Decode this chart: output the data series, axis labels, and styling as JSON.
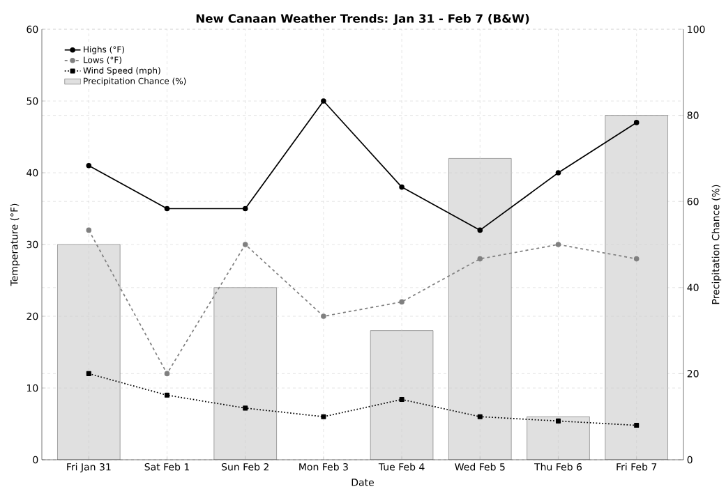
{
  "chart_data": {
    "type": "line",
    "title": "New Canaan Weather Trends: Jan 31 - Feb 7 (B&W)",
    "xlabel": "Date",
    "ylabel": "Temperature (°F)",
    "y2label": "Precipitation Chance (%)",
    "categories": [
      "Fri Jan 31",
      "Sat Feb 1",
      "Sun Feb 2",
      "Mon Feb 3",
      "Tue Feb 4",
      "Wed Feb 5",
      "Thu Feb 6",
      "Fri Feb 7"
    ],
    "series": [
      {
        "name": "Precipitation Chance (%)",
        "type": "bar",
        "axis": "y2",
        "color": "#e0e0e0",
        "values": [
          50,
          0,
          40,
          0,
          30,
          70,
          10,
          80
        ]
      },
      {
        "name": "Highs (°F)",
        "color": "#000000",
        "marker": "circle",
        "line_style": "solid",
        "values": [
          41,
          35,
          35,
          50,
          38,
          32,
          40,
          47
        ]
      },
      {
        "name": "Lows (°F)",
        "color": "#808080",
        "marker": "circle",
        "line_style": "dashed",
        "values": [
          32,
          12,
          30,
          20,
          22,
          28,
          30,
          28
        ]
      },
      {
        "name": "Wind Speed (mph)",
        "color": "#000000",
        "marker": "square",
        "line_style": "dotted",
        "values": [
          12,
          9,
          7.2,
          6,
          8.4,
          6,
          5.4,
          4.8
        ]
      }
    ],
    "ylim": [
      0,
      60
    ],
    "yticks": [
      0,
      10,
      20,
      30,
      40,
      50,
      60
    ],
    "y2lim": [
      0,
      100
    ],
    "y2ticks": [
      0,
      20,
      40,
      60,
      80,
      100
    ],
    "grid": true,
    "legend": "top left"
  }
}
